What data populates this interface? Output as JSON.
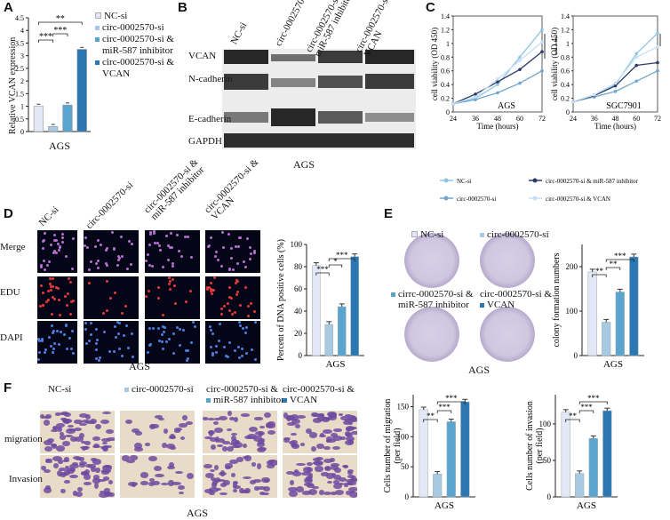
{
  "panels": {
    "A": "A",
    "B": "B",
    "C": "C",
    "D": "D",
    "E": "E",
    "F": "F"
  },
  "colors": {
    "nc": "#e4e8f6",
    "si": "#a7c9e1",
    "inhib": "#5aa5cf",
    "vcan": "#2a77b4",
    "grey_light": "#bcd6ea"
  },
  "groups": [
    "NC-si",
    "circ-0002570-si",
    "circ-0002570-si & miR-587 inhibitor",
    "circ-0002570-si & VCAN"
  ],
  "panelA": {
    "ylabel": "Relative VCAN expression",
    "xlabel": "AGS",
    "legend": [
      "NC-si",
      "circ-0002570-si",
      "circ-0002570-si &",
      "miR-587 inhibitor",
      "circ-0002570-si &",
      "VCAN"
    ],
    "sig": [
      "***",
      "***",
      "**"
    ],
    "yticks": [
      "0",
      "0.5",
      "1",
      "1.5",
      "2",
      "2.5",
      "3",
      "3.5",
      "4",
      "4.5"
    ]
  },
  "panelB": {
    "lanes": [
      "NC-si",
      "circ-0002570-si",
      "circ-0002570-si & miR-587 inhibitor",
      "circ-0002570-si & VCAN"
    ],
    "proteins": [
      "VCAN",
      "N-cadherin",
      "E-cadherin",
      "GAPDH"
    ],
    "xlabel": "AGS"
  },
  "panelC": {
    "ylabel": "cell viability (OD 450)",
    "xlabel": "Time (hours)",
    "xticks": [
      "24",
      "36",
      "48",
      "60",
      "72"
    ],
    "yticks": [
      "0",
      "0.2",
      "0.4",
      "0.6",
      "0.8",
      "1",
      "1.2",
      "1.4"
    ],
    "left_title": "AGS",
    "right_title": "SGC7901",
    "sig": [
      "**",
      "***",
      "***"
    ],
    "legend": [
      "NC-si",
      "circ-0002570-si & miR-587 inhibitor",
      "circ-0002570-si",
      "circ-0002570-si & VCAN"
    ]
  },
  "panelD": {
    "rows": [
      "Merge",
      "EDU",
      "DAPI"
    ],
    "cols": [
      "NC-si",
      "circ-0002570-si",
      "circ-0002570-si & miR-587 inhibitor",
      "circ-0002570-si & VCAN"
    ],
    "xlabel": "AGS",
    "ylabel": "Percent of DNA positive cells (%)",
    "bar_xlabel": "AGS",
    "sig": [
      "***",
      "*",
      "***"
    ],
    "yticks": [
      "0",
      "20",
      "40",
      "60",
      "80",
      "100"
    ]
  },
  "panelE": {
    "labels": [
      "NC-si",
      "circ-0002570-si",
      "cirrc-0002570-si &",
      "miR-587 inhibitor",
      "circ-0002570-si &",
      "VCAN"
    ],
    "xlabel": "AGS",
    "ylabel": "colony formation numbers",
    "bar_xlabel": "AGS",
    "sig": [
      "**",
      "**",
      "***"
    ],
    "yticks": [
      "0",
      "100",
      "200"
    ]
  },
  "panelF": {
    "cols": [
      "NC-si",
      "circ-0002570-si",
      "circ-0002570-si &",
      "miR-587 inhibitor",
      "circ-0002570-si &",
      "VCAN"
    ],
    "rows": [
      "migration",
      "Invasion"
    ],
    "xlabel": "AGS",
    "mig_ylabel": "Cells number of migration",
    "mig_ylabel2": "(per field)",
    "inv_ylabel": "Cells number of invasion",
    "inv_ylabel2": "(per field)",
    "bar_xlabel": "AGS",
    "sig": [
      "**",
      "***",
      "***"
    ],
    "yticks": [
      "0",
      "50",
      "100",
      "150"
    ]
  },
  "chart_data": [
    {
      "type": "bar",
      "categories": [
        "NC-si",
        "circ-0002570-si",
        "circ-0002570-si & miR-587 inhibitor",
        "circ-0002570-si & VCAN"
      ],
      "values": [
        1.0,
        0.2,
        1.05,
        3.25
      ],
      "ylabel": "Relative VCAN expression",
      "xlabel": "AGS",
      "ylim": [
        0,
        4.5
      ]
    },
    {
      "type": "line",
      "x": [
        24,
        36,
        48,
        60,
        72
      ],
      "title": "AGS",
      "ylabel": "cell viability (OD 450)",
      "xlabel": "Time (hours)",
      "ylim": [
        0,
        1.4
      ],
      "series": [
        {
          "name": "NC-si",
          "values": [
            0.12,
            0.2,
            0.4,
            0.8,
            1.2
          ]
        },
        {
          "name": "circ-0002570-si",
          "values": [
            0.12,
            0.18,
            0.28,
            0.42,
            0.6
          ]
        },
        {
          "name": "circ-0002570-si & miR-587 inhibitor",
          "values": [
            0.12,
            0.26,
            0.44,
            0.62,
            0.88
          ]
        },
        {
          "name": "circ-0002570-si & VCAN",
          "values": [
            0.12,
            0.22,
            0.48,
            0.75,
            1.02
          ]
        }
      ]
    },
    {
      "type": "line",
      "x": [
        24,
        36,
        48,
        60,
        72
      ],
      "title": "SGC7901",
      "ylabel": "cell viability (OD 450)",
      "xlabel": "Time (hours)",
      "ylim": [
        0,
        1.4
      ],
      "series": [
        {
          "name": "NC-si",
          "values": [
            0.15,
            0.25,
            0.4,
            0.85,
            1.15
          ]
        },
        {
          "name": "circ-0002570-si",
          "values": [
            0.15,
            0.22,
            0.3,
            0.45,
            0.6
          ]
        },
        {
          "name": "circ-0002570-si & miR-587 inhibitor",
          "values": [
            0.15,
            0.24,
            0.38,
            0.68,
            0.72
          ]
        },
        {
          "name": "circ-0002570-si & VCAN",
          "values": [
            0.15,
            0.25,
            0.42,
            0.8,
            0.95
          ]
        }
      ]
    },
    {
      "type": "bar",
      "categories": [
        "NC-si",
        "circ-0002570-si",
        "circ-0002570-si & miR-587 inhibitor",
        "circ-0002570-si & VCAN"
      ],
      "values": [
        81,
        28,
        44,
        89
      ],
      "ylabel": "Percent of DNA positive cells (%)",
      "xlabel": "AGS",
      "ylim": [
        0,
        100
      ]
    },
    {
      "type": "bar",
      "categories": [
        "NC-si",
        "circ-0002570-si",
        "circ-0002570-si & miR-587 inhibitor",
        "circ-0002570-si & VCAN"
      ],
      "values": [
        188,
        75,
        143,
        222
      ],
      "ylabel": "colony formation numbers",
      "xlabel": "AGS",
      "ylim": [
        0,
        250
      ]
    },
    {
      "type": "bar",
      "categories": [
        "NC-si",
        "circ-0002570-si",
        "circ-0002570-si & miR-587 inhibitor",
        "circ-0002570-si & VCAN"
      ],
      "values": [
        145,
        38,
        125,
        158
      ],
      "ylabel": "Cells number of migration (per field)",
      "xlabel": "AGS",
      "ylim": [
        0,
        170
      ]
    },
    {
      "type": "bar",
      "categories": [
        "NC-si",
        "circ-0002570-si",
        "circ-0002570-si & miR-587 inhibitor",
        "circ-0002570-si & VCAN"
      ],
      "values": [
        116,
        32,
        80,
        118
      ],
      "ylabel": "Cells number of invasion (per field)",
      "xlabel": "AGS",
      "ylim": [
        0,
        140
      ]
    }
  ]
}
